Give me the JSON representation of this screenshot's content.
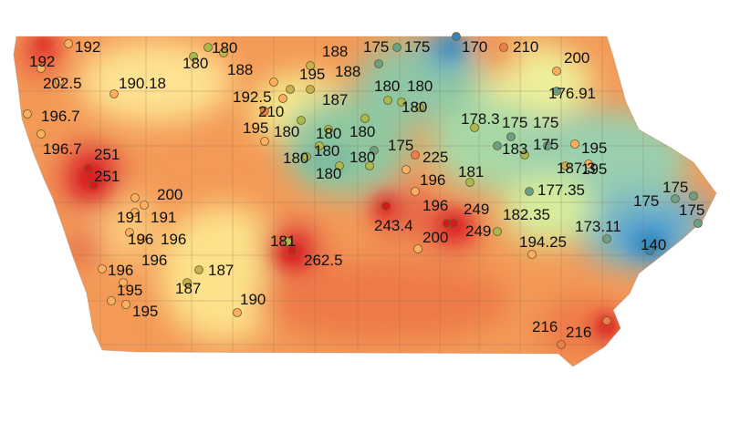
{
  "map": {
    "labels": [
      "192",
      "192",
      "202.5",
      "190.18",
      "196.7",
      "196.7",
      "251",
      "251",
      "200",
      "191",
      "191",
      "196",
      "196",
      "196",
      "196",
      "195",
      "195",
      "180",
      "180",
      "188",
      "188",
      "195",
      "188",
      "192.5",
      "187",
      "210",
      "195",
      "180",
      "180",
      "180",
      "180",
      "180",
      "180",
      "180",
      "175",
      "175",
      "170",
      "180",
      "180",
      "180",
      "210",
      "200",
      "176.91",
      "178.3",
      "175",
      "175",
      "183",
      "175",
      "195",
      "187.3",
      "195",
      "225",
      "175",
      "196",
      "181",
      "177.35",
      "196",
      "249",
      "243.4",
      "249",
      "200",
      "181",
      "262.5",
      "187",
      "187",
      "190",
      "182.35",
      "194.25",
      "173.11",
      "175",
      "175",
      "175",
      "140",
      "216",
      "216"
    ],
    "colors": {
      "high": "#d7191c",
      "mid_high": "#f07c4a",
      "mid": "#fdae61",
      "neutral": "#ffffbf",
      "low_mid": "#abdda4",
      "low": "#6aaed6",
      "lowest": "#2b83ba"
    }
  }
}
